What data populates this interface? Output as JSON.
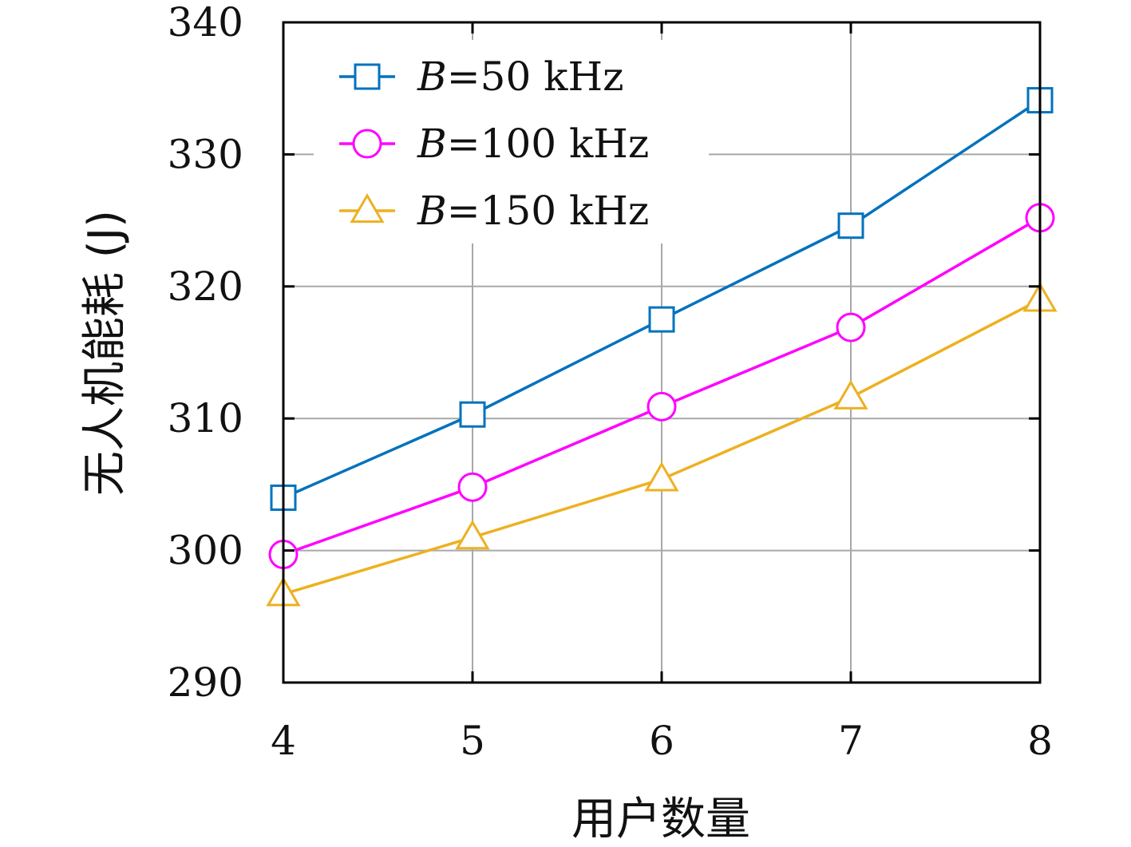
{
  "chart_data": {
    "type": "line",
    "xlabel": "用户数量",
    "ylabel": "无人机能耗 (J)",
    "x": [
      4,
      5,
      6,
      7,
      8
    ],
    "xlim": [
      4,
      8
    ],
    "ylim": [
      290,
      340
    ],
    "xticks": [
      "4",
      "5",
      "6",
      "7",
      "8"
    ],
    "yticks": [
      "290",
      "300",
      "310",
      "320",
      "330",
      "340"
    ],
    "grid": true,
    "legend_position": "top-left",
    "series": [
      {
        "name": "B=50 kHz",
        "legend_var": "B",
        "legend_rest": "=50 kHz",
        "color": "#0072BD",
        "marker": "square",
        "values": [
          304.0,
          310.3,
          317.5,
          324.6,
          334.1
        ]
      },
      {
        "name": "B=100 kHz",
        "legend_var": "B",
        "legend_rest": "=100 kHz",
        "color": "#FF00FF",
        "marker": "circle",
        "values": [
          299.7,
          304.8,
          310.9,
          316.9,
          325.2
        ]
      },
      {
        "name": "B=150 kHz",
        "legend_var": "B",
        "legend_rest": "=150 kHz",
        "color": "#EDB120",
        "marker": "triangle",
        "values": [
          296.7,
          301.0,
          305.4,
          311.6,
          319.0
        ]
      }
    ]
  }
}
